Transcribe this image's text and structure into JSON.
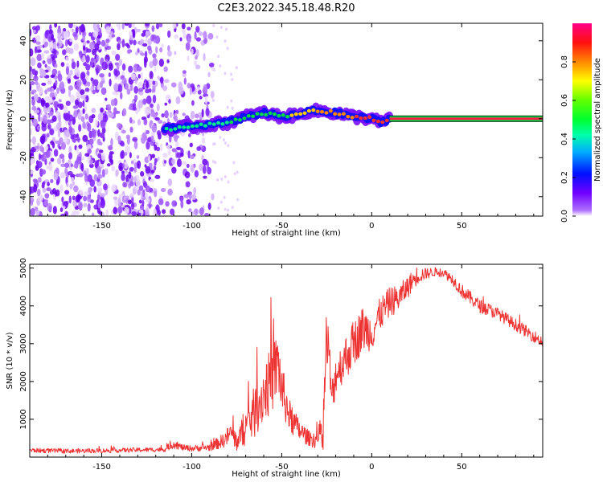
{
  "chart_data": [
    {
      "type": "heatmap",
      "title": "C2E3.2022.345.18.48.R20",
      "xlabel": "Height of straight line (km)",
      "ylabel": "Frequency (Hz)",
      "xlim": [
        -190,
        95
      ],
      "ylim": [
        -50,
        49
      ],
      "x_ticks": [
        -150,
        -100,
        -50,
        0,
        50
      ],
      "y_ticks": [
        -40,
        -20,
        0,
        20,
        40
      ],
      "colorbar": {
        "label": "Normalized spectral amplitude",
        "range": [
          0.0,
          1.0
        ],
        "ticks": [
          "0.0",
          "0.2",
          "0.4",
          "0.6",
          "0.8"
        ],
        "colors": [
          "#ffffff",
          "#a64dff",
          "#6a00ff",
          "#0000ff",
          "#00c8ff",
          "#00ff80",
          "#40ff00",
          "#ffff00",
          "#ff8000",
          "#ff0000",
          "#ff0080"
        ]
      },
      "ridge": {
        "description": "frequency of strongest spectral component vs height",
        "x": [
          -115,
          -110,
          -100,
          -90,
          -80,
          -70,
          -60,
          -50,
          -40,
          -35,
          -30,
          -20,
          -10,
          0,
          5,
          10,
          95
        ],
        "y": [
          -5,
          -5,
          -4,
          -3,
          -2,
          1,
          3,
          1,
          2,
          4,
          4,
          3,
          1,
          0,
          -2,
          0,
          0
        ],
        "noise_region_x": [
          -190,
          -88
        ]
      }
    },
    {
      "type": "line",
      "xlabel": "Height of straight line (km)",
      "ylabel": "SNR (10 * v/v)",
      "xlim": [
        -190,
        95
      ],
      "ylim": [
        0,
        5100
      ],
      "x_ticks": [
        -150,
        -100,
        -50,
        0,
        50
      ],
      "y_ticks": [
        1000,
        2000,
        3000,
        4000,
        5000
      ],
      "line_color": "#ee3333",
      "series": [
        {
          "name": "SNR",
          "x": [
            -190,
            -170,
            -150,
            -130,
            -115,
            -110,
            -105,
            -100,
            -90,
            -82,
            -78,
            -75,
            -70,
            -65,
            -60,
            -55,
            -52,
            -50,
            -45,
            -40,
            -35,
            -30,
            -27,
            -25,
            -22,
            -20,
            -15,
            -10,
            -5,
            0,
            5,
            10,
            15,
            20,
            25,
            30,
            35,
            40,
            45,
            50,
            55,
            60,
            65,
            70,
            75,
            80,
            85,
            90,
            95
          ],
          "values": [
            180,
            160,
            170,
            190,
            200,
            350,
            250,
            230,
            260,
            450,
            650,
            400,
            800,
            1200,
            1700,
            2100,
            2500,
            1800,
            1000,
            700,
            500,
            450,
            800,
            3300,
            1500,
            2200,
            2600,
            3000,
            3400,
            3300,
            3800,
            4100,
            4200,
            4500,
            4800,
            4850,
            4900,
            4880,
            4700,
            4400,
            4200,
            4000,
            3900,
            3800,
            3650,
            3500,
            3350,
            3200,
            3050
          ],
          "noise_amplitude": [
            60,
            60,
            60,
            60,
            60,
            120,
            80,
            80,
            100,
            200,
            300,
            250,
            500,
            700,
            800,
            900,
            900,
            700,
            400,
            300,
            200,
            250,
            600,
            900,
            600,
            500,
            600,
            600,
            600,
            500,
            450,
            400,
            350,
            300,
            250,
            150,
            120,
            120,
            150,
            180,
            180,
            180,
            180,
            160,
            160,
            160,
            160,
            160,
            160
          ]
        }
      ]
    }
  ]
}
